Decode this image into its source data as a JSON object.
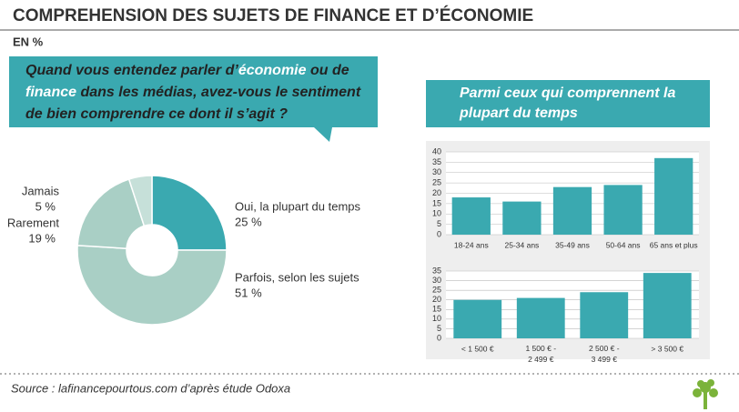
{
  "header": {
    "title": "COMPREHENSION DES SUJETS DE FINANCE ET D’ÉCONOMIE",
    "subtitle": "EN %"
  },
  "question": [
    "Quand vous entendez parler d’",
    "économie",
    " ou de ",
    "finance",
    " dans les médias, avez-vous le sentiment de bien comprendre ce dont il s’agit ?"
  ],
  "panel_title": "Parmi ceux qui comprennent la plupart du temps",
  "source": "Source : lafinancepourtous.com d’après étude Odoxa",
  "chart_data": [
    {
      "type": "donut",
      "categories": [
        "Oui, la plupart du temps",
        "Parfois, selon les sujets",
        "Rarement",
        "Jamais"
      ],
      "values": [
        25,
        51,
        19,
        5
      ],
      "value_labels": [
        "25 %",
        "51 %",
        "19 %",
        "5 %"
      ],
      "colors": [
        "#3aa9b0",
        "#a9cfc5",
        "#a9cfc5",
        "#c6e0d9"
      ]
    },
    {
      "type": "bar",
      "categories": [
        "18-24 ans",
        "25-34 ans",
        "35-49 ans",
        "50-64 ans",
        "65 ans et plus"
      ],
      "values": [
        18,
        16,
        23,
        24,
        37
      ],
      "color": "#3aa9b0",
      "ylim": [
        0,
        40
      ],
      "yticks": [
        0,
        5,
        10,
        15,
        20,
        25,
        30,
        35,
        40
      ],
      "grid": true
    },
    {
      "type": "bar",
      "categories": [
        "< 1 500 €",
        "1 500 € -\n2 499 €",
        "2 500 € -\n3 499 €",
        "> 3 500 €"
      ],
      "values": [
        20,
        21,
        24,
        34
      ],
      "color": "#3aa9b0",
      "ylim": [
        0,
        35
      ],
      "yticks": [
        0,
        5,
        10,
        15,
        20,
        25,
        30,
        35
      ],
      "grid": true
    }
  ]
}
